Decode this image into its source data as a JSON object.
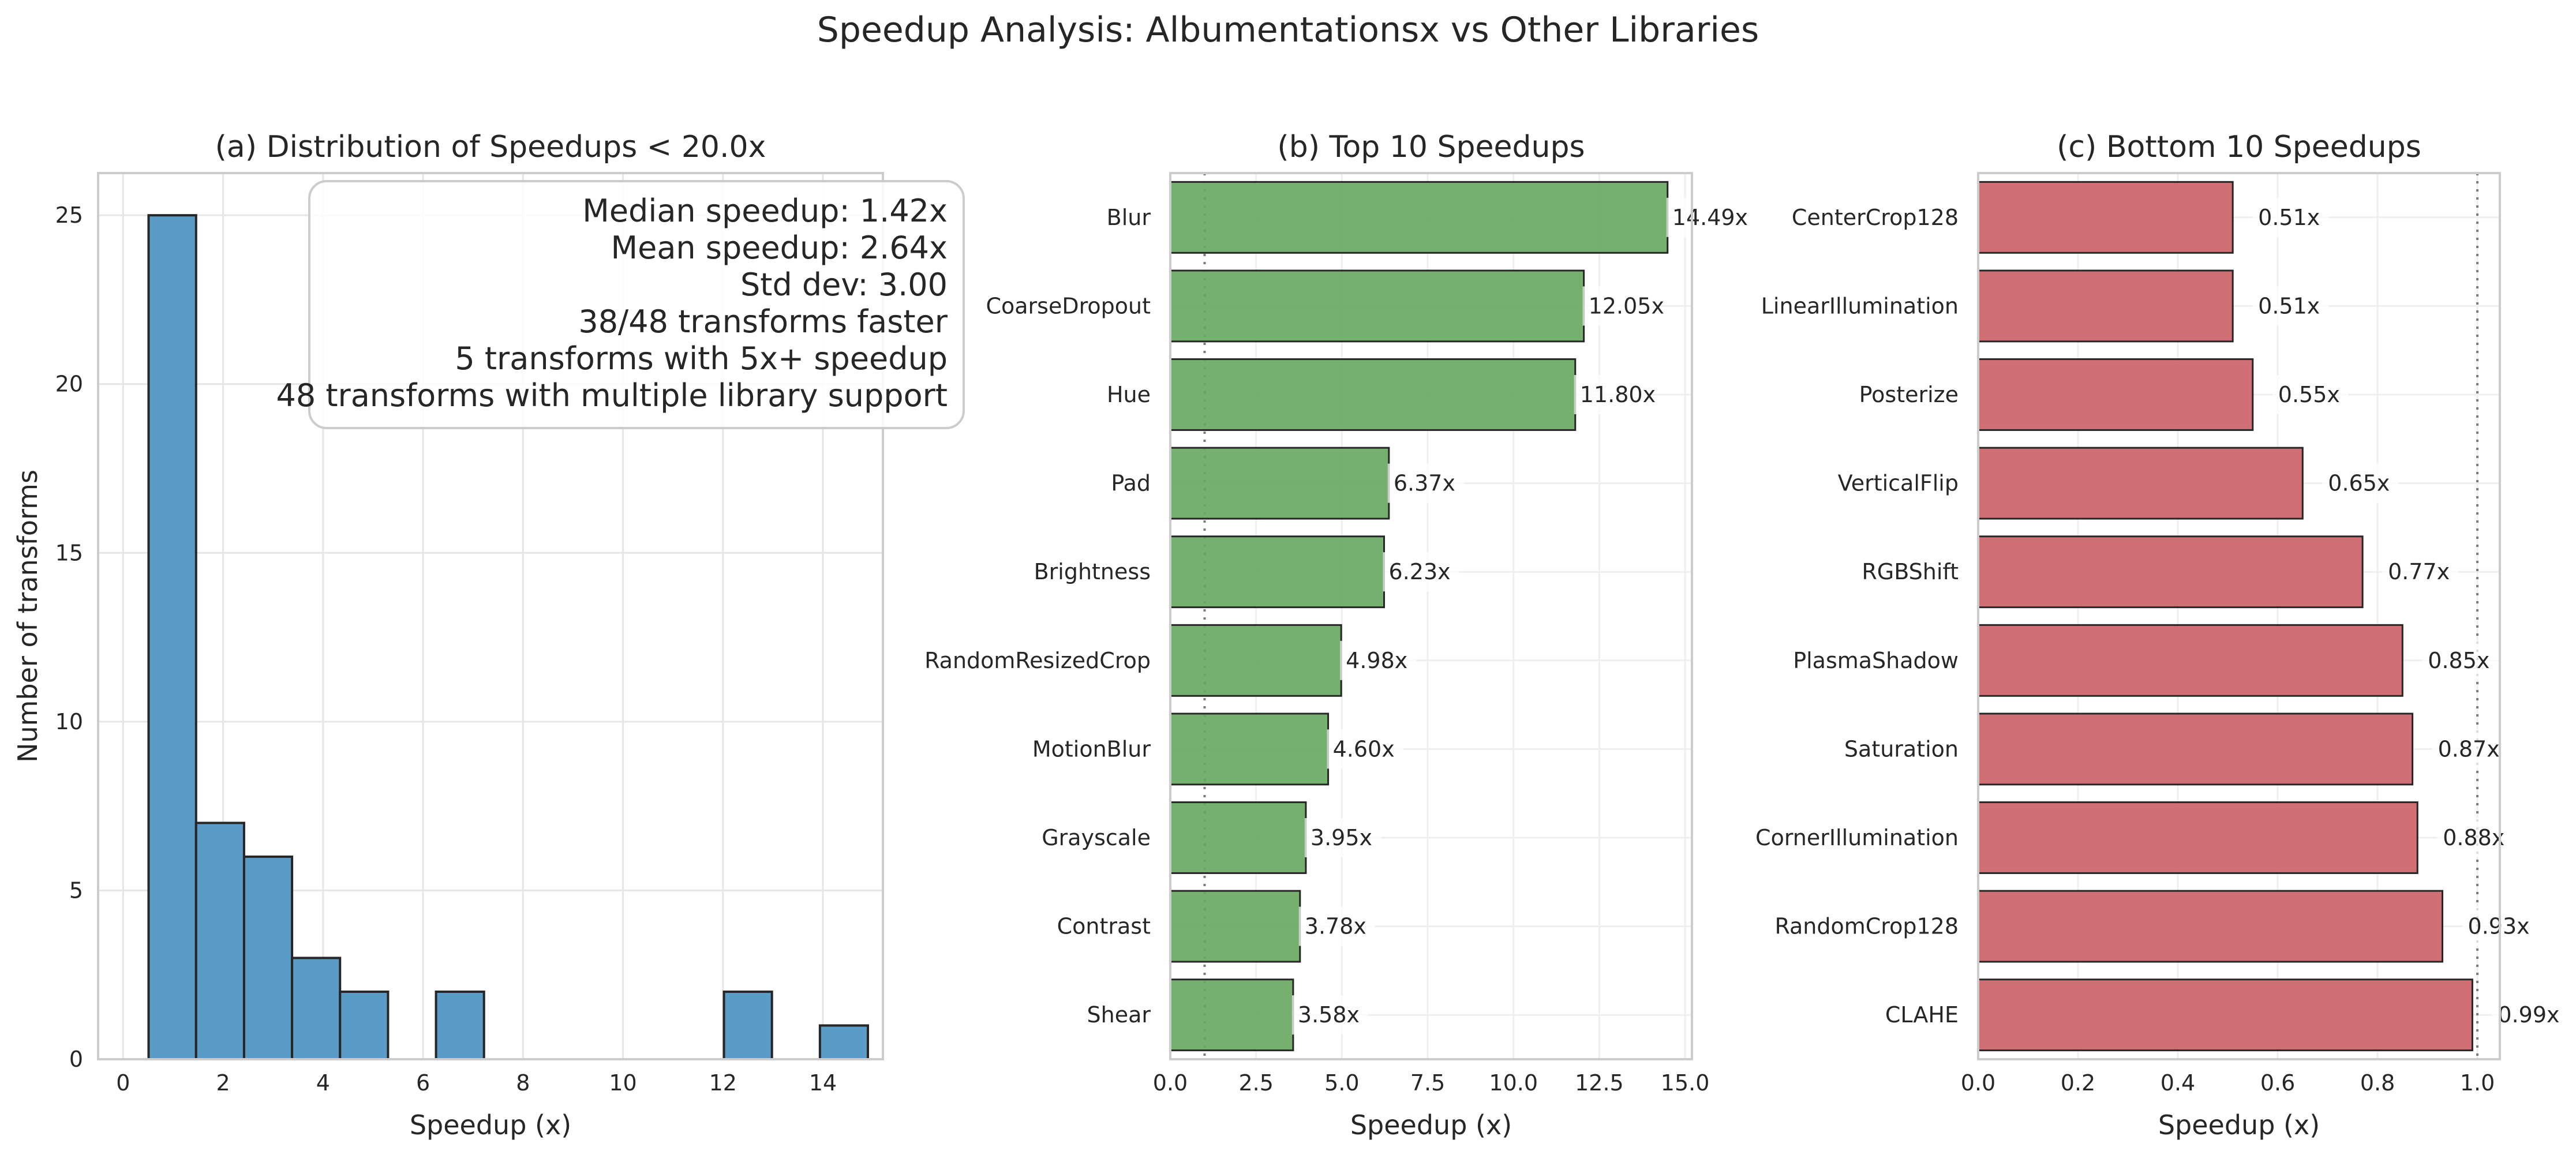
{
  "suptitle": "Speedup Analysis: Albumentationsx vs Other Libraries",
  "colors": {
    "hist": "#5b9bc8",
    "top": "#6aa962",
    "bottom": "#cc6468",
    "edge": "#262626",
    "reference_line": "#7a7a7a"
  },
  "chart_data": [
    {
      "type": "bar",
      "subtype": "histogram",
      "title": "(a) Distribution of Speedups < 20.0x",
      "xlabel": "Speedup (x)",
      "ylabel": "Number of transforms",
      "xlim": [
        -0.5,
        15.2
      ],
      "ylim": [
        0,
        26.25
      ],
      "xticks": [
        0,
        2,
        4,
        6,
        8,
        10,
        12,
        14
      ],
      "yticks": [
        0,
        5,
        10,
        15,
        20,
        25
      ],
      "bins": [
        {
          "x0": 0.51,
          "x1": 1.46,
          "count": 25
        },
        {
          "x0": 1.46,
          "x2": 0,
          "x1": 2.42,
          "count": 7
        },
        {
          "x0": 2.42,
          "x1": 3.38,
          "count": 6
        },
        {
          "x0": 3.38,
          "x1": 4.34,
          "count": 3
        },
        {
          "x0": 4.34,
          "x1": 5.3,
          "count": 2
        },
        {
          "x0": 5.3,
          "x1": 6.26,
          "count": 0
        },
        {
          "x0": 6.26,
          "x1": 7.22,
          "count": 2
        },
        {
          "x0": 7.22,
          "x1": 8.18,
          "count": 0
        },
        {
          "x0": 8.18,
          "x1": 9.14,
          "count": 0
        },
        {
          "x0": 9.14,
          "x1": 10.1,
          "count": 0
        },
        {
          "x0": 10.1,
          "x1": 11.06,
          "count": 0
        },
        {
          "x0": 11.06,
          "x1": 12.02,
          "count": 0
        },
        {
          "x0": 12.02,
          "x1": 12.98,
          "count": 2
        },
        {
          "x0": 12.98,
          "x1": 13.94,
          "count": 0
        },
        {
          "x0": 13.94,
          "x1": 14.9,
          "count": 1
        }
      ],
      "stats_box": [
        "Median speedup: 1.42x",
        "Mean speedup: 2.64x",
        "Std dev: 3.00",
        "38/48 transforms faster",
        "5 transforms with 5x+ speedup",
        "48 transforms with multiple library support"
      ],
      "grid": true,
      "stats_box_placement": "top-right"
    },
    {
      "type": "bar",
      "orientation": "horizontal",
      "title": "(b) Top 10 Speedups",
      "xlabel": "Speedup (x)",
      "xlim": [
        0,
        15.2
      ],
      "xticks": [
        0.0,
        2.5,
        5.0,
        7.5,
        10.0,
        12.5,
        15.0
      ],
      "xtick_labels": [
        "0.0",
        "2.5",
        "5.0",
        "7.5",
        "10.0",
        "12.5",
        "15.0"
      ],
      "reference_line": 1.0,
      "categories": [
        "Blur",
        "CoarseDropout",
        "Hue",
        "Pad",
        "Brightness",
        "RandomResizedCrop",
        "MotionBlur",
        "Grayscale",
        "Contrast",
        "Shear"
      ],
      "values": [
        14.49,
        12.05,
        11.8,
        6.37,
        6.23,
        4.98,
        4.6,
        3.95,
        3.78,
        3.58
      ],
      "labels": [
        "14.49x",
        "12.05x",
        "11.80x",
        "6.37x",
        "6.23x",
        "4.98x",
        "4.60x",
        "3.95x",
        "3.78x",
        "3.58x"
      ],
      "grid": true
    },
    {
      "type": "bar",
      "orientation": "horizontal",
      "title": "(c) Bottom 10 Speedups",
      "xlabel": "Speedup (x)",
      "xlim": [
        0,
        1.045
      ],
      "xticks": [
        0.0,
        0.2,
        0.4,
        0.6,
        0.8,
        1.0
      ],
      "xtick_labels": [
        "0.0",
        "0.2",
        "0.4",
        "0.6",
        "0.8",
        "1.0"
      ],
      "reference_line": 1.0,
      "categories": [
        "CenterCrop128",
        "LinearIllumination",
        "Posterize",
        "VerticalFlip",
        "RGBShift",
        "PlasmaShadow",
        "Saturation",
        "CornerIllumination",
        "RandomCrop128",
        "CLAHE"
      ],
      "values": [
        0.51,
        0.51,
        0.55,
        0.65,
        0.77,
        0.85,
        0.87,
        0.88,
        0.93,
        0.99
      ],
      "labels": [
        "0.51x",
        "0.51x",
        "0.55x",
        "0.65x",
        "0.77x",
        "0.85x",
        "0.87x",
        "0.88x",
        "0.93x",
        "0.99x"
      ],
      "grid": true
    }
  ]
}
